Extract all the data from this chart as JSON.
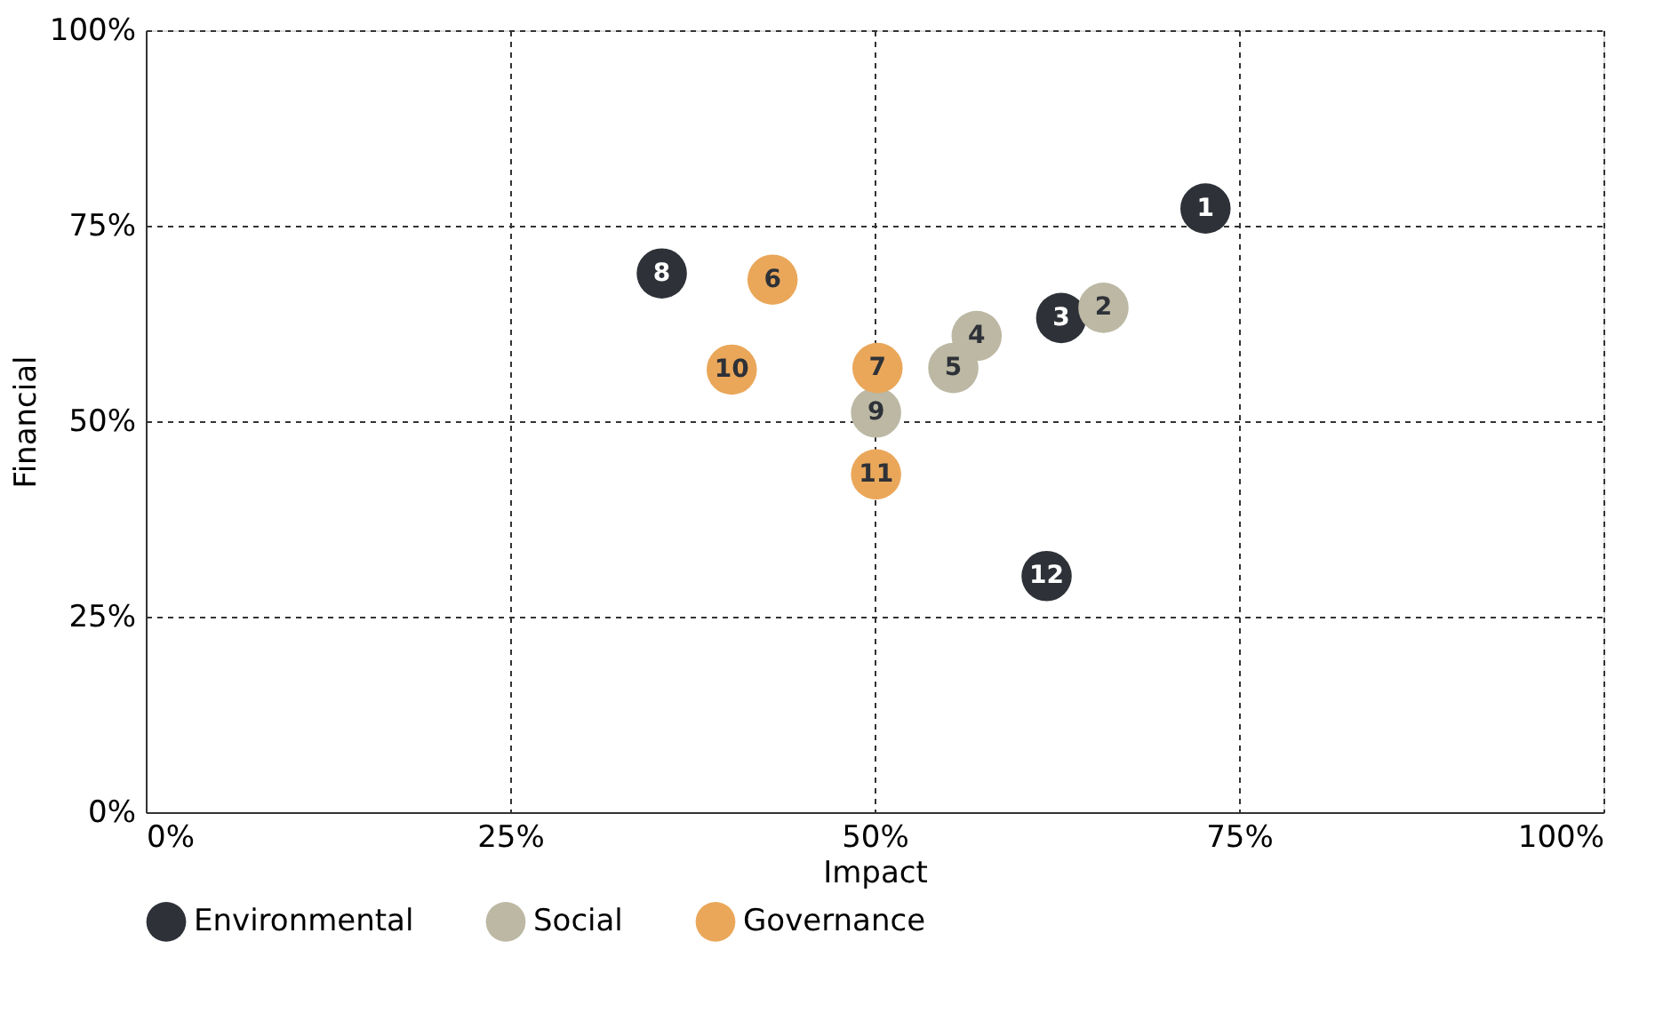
{
  "chart_data": {
    "type": "scatter",
    "xlabel": "Impact",
    "ylabel": "Financial",
    "xlim": [
      0,
      100
    ],
    "ylim": [
      0,
      100
    ],
    "xticks": [
      {
        "value": 0,
        "label": "0%"
      },
      {
        "value": 25,
        "label": "25%"
      },
      {
        "value": 50,
        "label": "50%"
      },
      {
        "value": 75,
        "label": "75%"
      },
      {
        "value": 100,
        "label": "100%"
      }
    ],
    "yticks": [
      {
        "value": 0,
        "label": "0%"
      },
      {
        "value": 25,
        "label": "25%"
      },
      {
        "value": 50,
        "label": "50%"
      },
      {
        "value": 75,
        "label": "75%"
      },
      {
        "value": 100,
        "label": "100%"
      }
    ],
    "grid": true,
    "legend": "bottom",
    "series": [
      {
        "name": "Environmental",
        "color": "#2e3238",
        "x": [
          72.7,
          62.8,
          35.4,
          61.8
        ],
        "values": [
          77.2,
          63.2,
          68.9,
          30.2
        ]
      },
      {
        "name": "Social",
        "color": "#bcb8a3",
        "x": [
          65.7,
          57.0,
          55.4,
          50.1
        ],
        "values": [
          64.5,
          60.9,
          56.8,
          51.1
        ]
      },
      {
        "name": "Governance",
        "color": "#eaa75a",
        "x": [
          43.0,
          50.2,
          40.2,
          50.1
        ],
        "values": [
          68.1,
          56.8,
          56.6,
          43.2
        ]
      }
    ],
    "annotations": [
      {
        "text": "1",
        "x": 72.7,
        "y": 77.2
      },
      {
        "text": "2",
        "x": 65.7,
        "y": 64.5
      },
      {
        "text": "3",
        "x": 62.8,
        "y": 63.2
      },
      {
        "text": "4",
        "x": 57.0,
        "y": 60.9
      },
      {
        "text": "5",
        "x": 55.4,
        "y": 56.8
      },
      {
        "text": "6",
        "x": 43.0,
        "y": 68.1
      },
      {
        "text": "7",
        "x": 50.2,
        "y": 56.8
      },
      {
        "text": "8",
        "x": 35.4,
        "y": 68.9
      },
      {
        "text": "9",
        "x": 50.1,
        "y": 51.1
      },
      {
        "text": "10",
        "x": 40.2,
        "y": 56.6
      },
      {
        "text": "11",
        "x": 50.1,
        "y": 43.2
      },
      {
        "text": "12",
        "x": 61.8,
        "y": 30.2
      }
    ]
  }
}
